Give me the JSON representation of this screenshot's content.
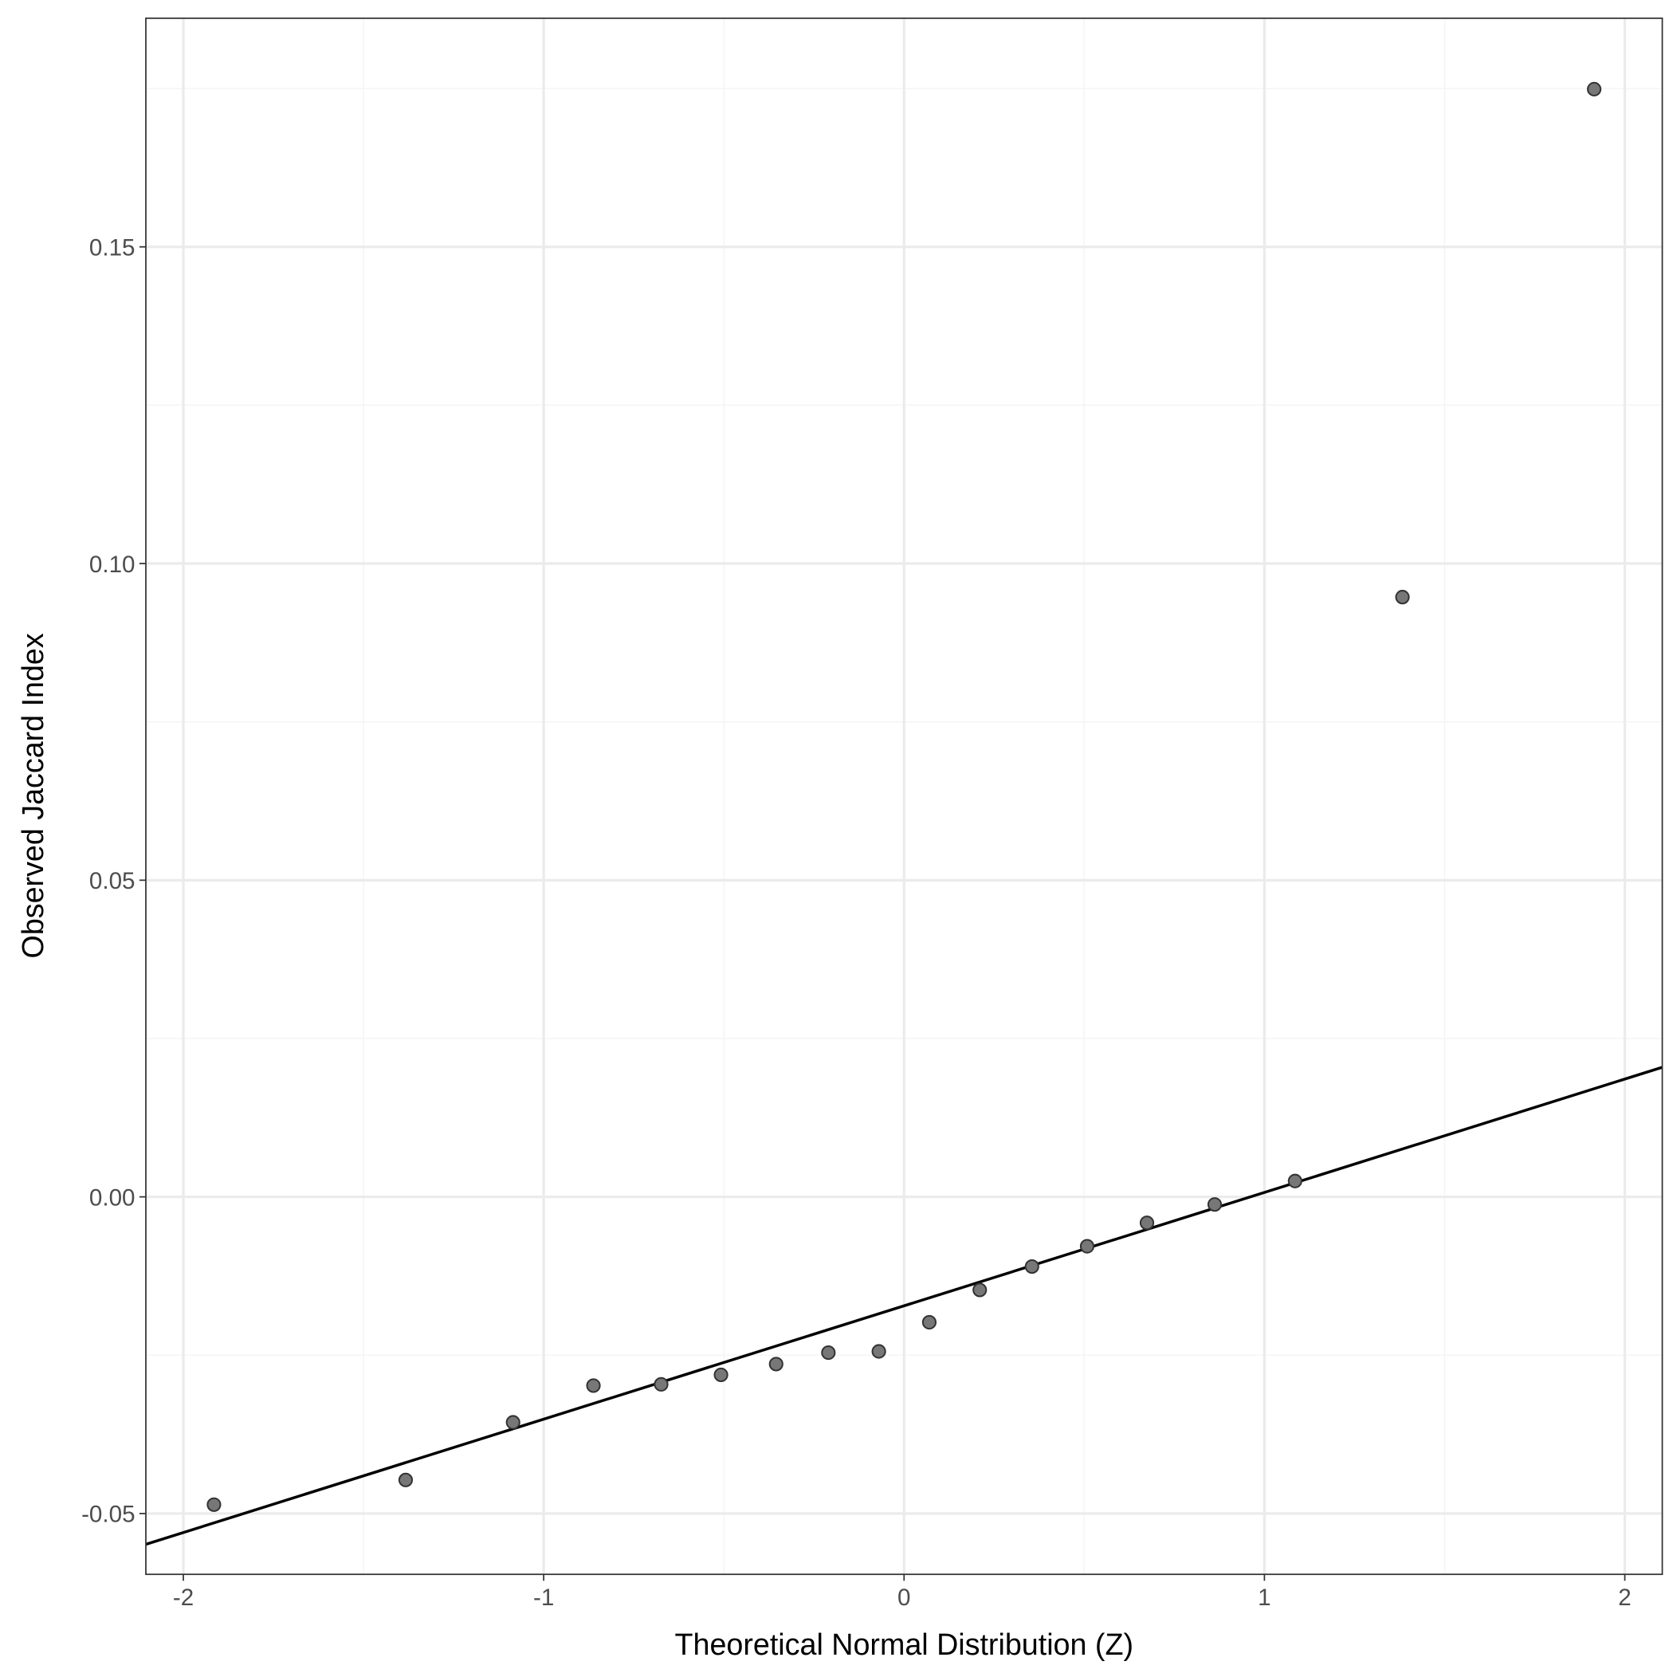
{
  "chart_data": {
    "type": "scatter",
    "title": "",
    "xlabel": "Theoretical Normal Distribution (Z)",
    "ylabel": "Observed Jaccard Index",
    "xlim": [
      -2.104,
      2.104
    ],
    "ylim": [
      -0.0596,
      0.1861
    ],
    "xticks": [
      -2,
      -1,
      0,
      1,
      2
    ],
    "xtick_labels": [
      "-2",
      "-1",
      "0",
      "1",
      "2"
    ],
    "xminor": [
      -1.5,
      -0.5,
      0.5,
      1.5
    ],
    "yticks": [
      -0.05,
      0,
      0.05,
      0.1,
      0.15
    ],
    "ytick_labels": [
      "-0.05",
      "0.00",
      "0.05",
      "0.10",
      "0.15"
    ],
    "yminor": [
      -0.025,
      0.025,
      0.075,
      0.125,
      0.175
    ],
    "grid": true,
    "points": {
      "x": [
        -1.915,
        -1.383,
        -1.085,
        -0.862,
        -0.674,
        -0.508,
        -0.355,
        -0.21,
        -0.07,
        0.07,
        0.21,
        0.355,
        0.508,
        0.674,
        0.862,
        1.085,
        1.383,
        1.915
      ],
      "y": [
        -0.0486,
        -0.0447,
        -0.0356,
        -0.0298,
        -0.0296,
        -0.0281,
        -0.0264,
        -0.0246,
        -0.0244,
        -0.0198,
        -0.0147,
        -0.011,
        -0.0078,
        -0.0041,
        -0.0012,
        0.0025,
        0.0947,
        0.1749
      ]
    },
    "reference_line": {
      "intercept": -0.0172,
      "slope": 0.0179
    },
    "colors": {
      "point_fill": "#777777",
      "point_stroke": "#333333",
      "line": "#000000",
      "grid_major": "#ebebeb",
      "grid_minor": "#f5f5f5"
    }
  }
}
